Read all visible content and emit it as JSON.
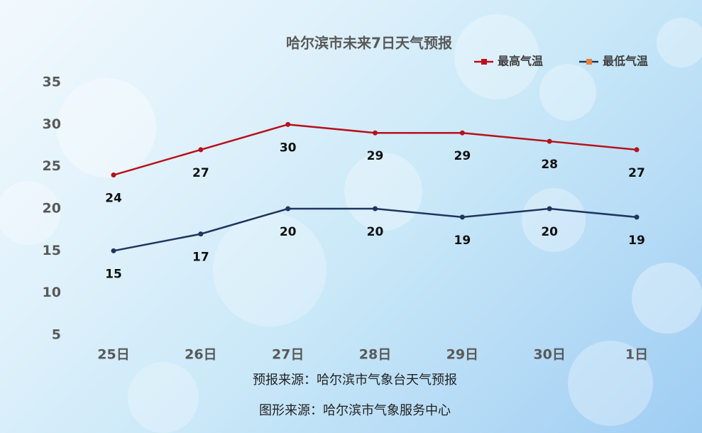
{
  "chart_data": {
    "type": "line",
    "title": "哈尔滨市未来7日天气预报",
    "categories": [
      "25日",
      "26日",
      "27日",
      "28日",
      "29日",
      "30日",
      "1日"
    ],
    "series": [
      {
        "name": "最高气温",
        "color": "#b8101c",
        "values": [
          24,
          27,
          30,
          29,
          29,
          28,
          27
        ]
      },
      {
        "name": "最低气温",
        "color": "#1f3560",
        "values": [
          15,
          17,
          20,
          20,
          19,
          20,
          19
        ]
      }
    ],
    "ylim": [
      5,
      35
    ],
    "yticks": [
      5,
      10,
      15,
      20,
      25,
      30,
      35
    ],
    "grid": false,
    "legend": "top-right",
    "notes": [
      "预报来源：哈尔滨市气象台天气预报",
      "图形来源：哈尔滨市气象服务中心"
    ]
  }
}
